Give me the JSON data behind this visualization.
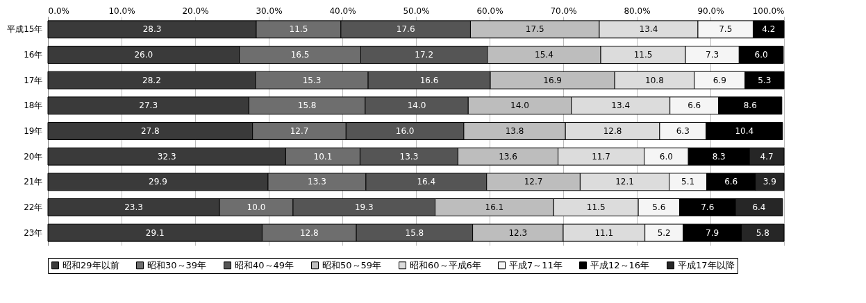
{
  "chart_data": {
    "type": "bar",
    "orientation": "horizontal",
    "stacked": true,
    "grid": "x",
    "legend": "bottom",
    "categories": [
      "平成15年",
      "16年",
      "17年",
      "18年",
      "19年",
      "20年",
      "21年",
      "22年",
      "23年"
    ],
    "xlim": [
      0,
      100
    ],
    "xticks": [
      {
        "value": 0,
        "label": "0.0%"
      },
      {
        "value": 10,
        "label": "10.0%"
      },
      {
        "value": 20,
        "label": "20.0%"
      },
      {
        "value": 30,
        "label": "30.0%"
      },
      {
        "value": 40,
        "label": "40.0%"
      },
      {
        "value": 50,
        "label": "50.0%"
      },
      {
        "value": 60,
        "label": "60.0%"
      },
      {
        "value": 70,
        "label": "70.0%"
      },
      {
        "value": 80,
        "label": "80.0%"
      },
      {
        "value": 90,
        "label": "90.0%"
      },
      {
        "value": 100,
        "label": "100.0%"
      }
    ],
    "series": [
      {
        "name": "昭和29年以前",
        "color": "#3a3a3a",
        "values": [
          28.3,
          26.0,
          28.2,
          27.3,
          27.8,
          32.3,
          29.9,
          23.3,
          29.1
        ],
        "value_labels": [
          "28.3",
          "26.0",
          "28.2",
          "27.3",
          "27.8",
          "32.3",
          "29.9",
          "23.3",
          "29.1"
        ]
      },
      {
        "name": "昭和30～39年",
        "color": "#6e6e6e",
        "values": [
          11.5,
          16.5,
          15.3,
          15.8,
          12.7,
          10.1,
          13.3,
          10.0,
          12.8
        ],
        "value_labels": [
          "11.5",
          "16.5",
          "15.3",
          "15.8",
          "12.7",
          "10.1",
          "13.3",
          "10.0",
          "12.8"
        ]
      },
      {
        "name": "昭和40～49年",
        "color": "#555555",
        "values": [
          17.6,
          17.2,
          16.6,
          14.0,
          16.0,
          13.3,
          16.4,
          19.3,
          15.8
        ],
        "value_labels": [
          "17.6",
          "17.2",
          "16.6",
          "14.0",
          "16.0",
          "13.3",
          "16.4",
          "19.3",
          "15.8"
        ]
      },
      {
        "name": "昭和50～59年",
        "color": "#bdbdbd",
        "values": [
          17.5,
          15.4,
          16.9,
          14.0,
          13.8,
          13.6,
          12.7,
          16.1,
          12.3
        ],
        "value_labels": [
          "17.5",
          "15.4",
          "16.9",
          "14.0",
          "13.8",
          "13.6",
          "12.7",
          "16.1",
          "12.3"
        ]
      },
      {
        "name": "昭和60～平成6年",
        "color": "#dcdcdc",
        "values": [
          13.4,
          11.5,
          10.8,
          13.4,
          12.8,
          11.7,
          12.1,
          11.5,
          11.1
        ],
        "value_labels": [
          "13.4",
          "11.5",
          "10.8",
          "13.4",
          "12.8",
          "11.7",
          "12.1",
          "11.5",
          "11.1"
        ]
      },
      {
        "name": "平成7～11年",
        "color": "#f5f5f5",
        "values": [
          7.5,
          7.3,
          6.9,
          6.6,
          6.3,
          6.0,
          5.1,
          5.6,
          5.2
        ],
        "value_labels": [
          "7.5",
          "7.3",
          "6.9",
          "6.6",
          "6.3",
          "6.0",
          "5.1",
          "5.6",
          "5.2"
        ]
      },
      {
        "name": "平成12～16年",
        "color": "#000000",
        "values": [
          4.2,
          6.0,
          5.3,
          8.6,
          10.4,
          8.3,
          6.6,
          7.6,
          7.9
        ],
        "value_labels": [
          "4.2",
          "6.0",
          "5.3",
          "8.6",
          "10.4",
          "8.3",
          "6.6",
          "7.6",
          "7.9"
        ]
      },
      {
        "name": "平成17年以降",
        "color": "#262626",
        "values": [
          null,
          null,
          null,
          null,
          null,
          4.7,
          3.9,
          6.4,
          5.8
        ],
        "value_labels": [
          null,
          null,
          null,
          null,
          null,
          "4.7",
          "3.9",
          "6.4",
          "5.8"
        ]
      }
    ]
  }
}
